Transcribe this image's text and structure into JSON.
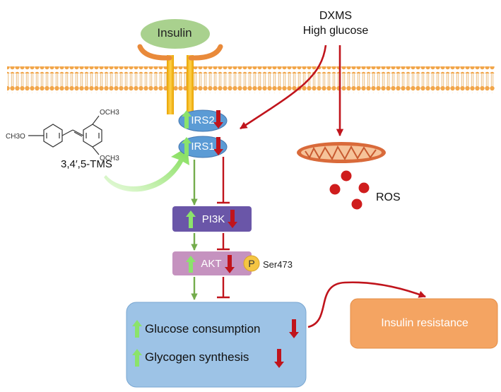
{
  "insulin": "Insulin",
  "stimuli": {
    "line1": "DXMS",
    "line2": "High glucose"
  },
  "compound": {
    "label": "3,4′,5-TMS",
    "substituents": [
      "OCH3",
      "OCH3",
      "CH3O"
    ]
  },
  "receptors": [
    "IRS2",
    "IRS1"
  ],
  "kinases": {
    "pi3k": "PI3K",
    "akt": "AKT"
  },
  "phospho": {
    "badge": "P",
    "site": "Ser473"
  },
  "ros": "ROS",
  "outcomes": {
    "line1": "Glucose consumption",
    "line2": "Glycogen synthesis"
  },
  "result": "Insulin resistance",
  "colors": {
    "up_arrow": "#8be36b",
    "down_arrow": "#c0141c",
    "activation": "#74ac4c",
    "inhibition": "#c0141c",
    "receptor_fill": "#5b9bd5",
    "pi3k_fill": "#6a56a8",
    "akt_fill": "#c592bf",
    "outcome_fill": "#9dc3e6",
    "result_fill": "#f4a462",
    "insulin_fill": "#a9d18e",
    "receptor_orange": "#e98a3a",
    "channel_gold": "#f4b183",
    "membrane_head": "#f2a64a"
  },
  "icons": [
    "membrane-bilayer",
    "mitochondrion-icon",
    "phosphate-icon",
    "ros-dots"
  ]
}
